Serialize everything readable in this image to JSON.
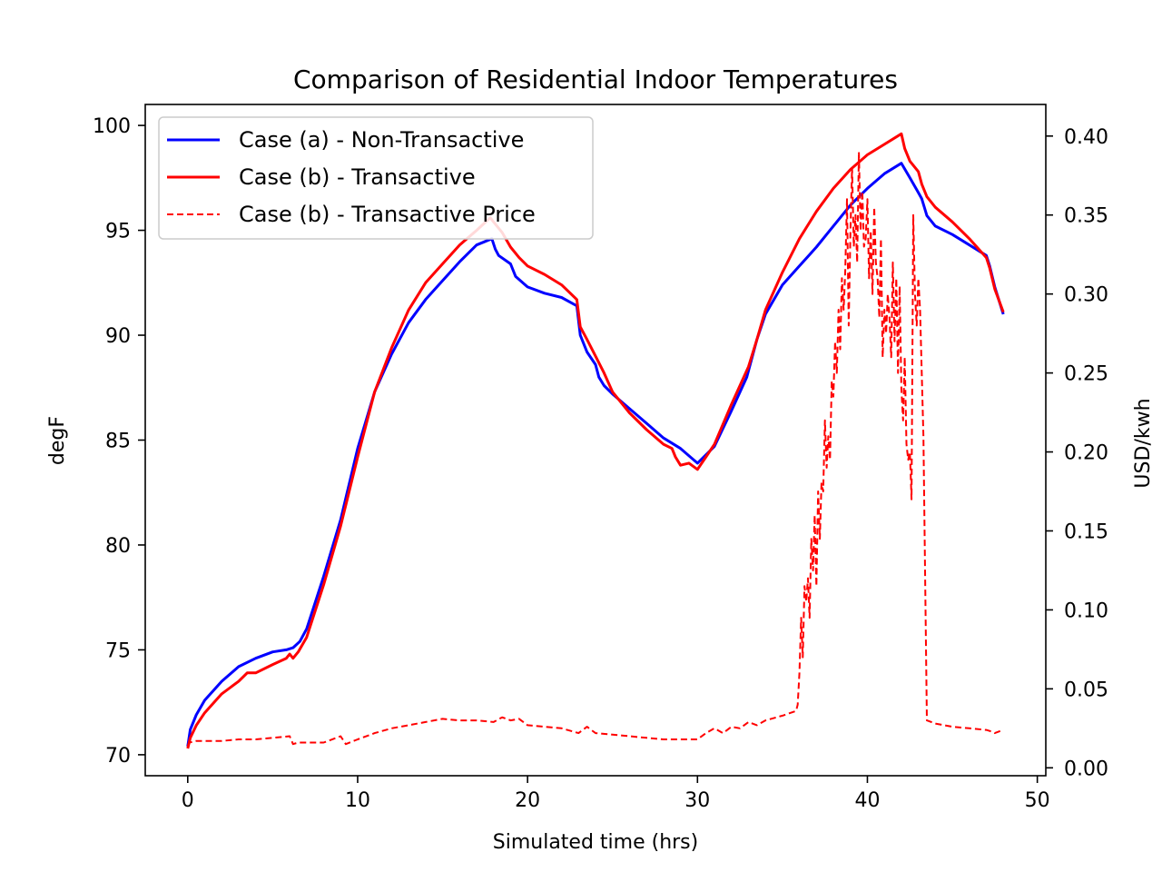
{
  "chart_data": {
    "type": "line",
    "title": "Comparison of Residential Indoor Temperatures",
    "xlabel": "Simulated time (hrs)",
    "ylabel": "degF",
    "y2label": "USD/kwh",
    "xlim": [
      -2.5,
      50.5
    ],
    "ylim": [
      69,
      101
    ],
    "y2lim": [
      -0.005,
      0.42
    ],
    "xticks": [
      "0",
      "10",
      "20",
      "30",
      "40",
      "50"
    ],
    "yticks": [
      "70",
      "75",
      "80",
      "85",
      "90",
      "95",
      "100"
    ],
    "y2ticks": [
      "0.00",
      "0.05",
      "0.10",
      "0.15",
      "0.20",
      "0.25",
      "0.30",
      "0.35",
      "0.40"
    ],
    "legend_position": "upper-left",
    "series": [
      {
        "name": "Case (a) - Non-Transactive",
        "color": "#0000ff",
        "style": "solid",
        "axis": "left",
        "x": [
          0.0,
          0.15,
          0.5,
          1.0,
          2.0,
          3.0,
          4.0,
          5.0,
          5.8,
          6.2,
          6.6,
          7.0,
          8.0,
          9.0,
          10.0,
          11.0,
          12.0,
          13.0,
          14.0,
          15.0,
          16.0,
          17.0,
          17.9,
          18.1,
          18.3,
          19.0,
          19.3,
          20.0,
          21.0,
          22.0,
          22.9,
          23.1,
          23.5,
          24.0,
          24.2,
          24.5,
          25.0,
          26.0,
          27.0,
          28.0,
          29.0,
          30.0,
          31.0,
          32.0,
          32.9,
          33.5,
          34.0,
          35.0,
          36.0,
          37.0,
          38.0,
          39.0,
          40.0,
          41.0,
          42.0,
          42.5,
          43.0,
          43.2,
          43.5,
          44.0,
          45.0,
          46.0,
          47.0,
          47.2,
          47.5,
          48.0
        ],
        "values": [
          70.4,
          71.2,
          71.9,
          72.6,
          73.5,
          74.2,
          74.6,
          74.9,
          75.0,
          75.1,
          75.4,
          76.0,
          78.5,
          81.2,
          84.6,
          87.3,
          89.1,
          90.6,
          91.7,
          92.6,
          93.5,
          94.3,
          94.6,
          94.1,
          93.8,
          93.4,
          92.8,
          92.3,
          92.0,
          91.8,
          91.4,
          90.0,
          89.2,
          88.6,
          88.0,
          87.6,
          87.2,
          86.5,
          85.8,
          85.1,
          84.6,
          83.9,
          84.7,
          86.4,
          88.0,
          89.8,
          91.0,
          92.4,
          93.3,
          94.2,
          95.2,
          96.2,
          97.0,
          97.7,
          98.2,
          97.5,
          96.8,
          96.5,
          95.7,
          95.2,
          94.8,
          94.3,
          93.8,
          93.3,
          92.3,
          91.0
        ]
      },
      {
        "name": "Case (b) - Transactive",
        "color": "#ff0000",
        "style": "solid",
        "axis": "left",
        "x": [
          0.0,
          0.15,
          0.5,
          1.0,
          2.0,
          3.0,
          3.5,
          4.0,
          5.0,
          5.8,
          6.0,
          6.2,
          6.5,
          7.0,
          8.0,
          9.0,
          10.0,
          11.0,
          12.0,
          13.0,
          14.0,
          15.0,
          16.0,
          17.0,
          17.8,
          18.0,
          18.5,
          19.0,
          19.5,
          20.0,
          21.0,
          22.0,
          22.9,
          23.1,
          23.5,
          24.0,
          24.5,
          25.0,
          26.0,
          27.0,
          28.0,
          28.5,
          28.7,
          29.0,
          29.5,
          30.0,
          30.5,
          31.0,
          32.0,
          33.0,
          33.5,
          34.0,
          35.0,
          36.0,
          37.0,
          38.0,
          39.0,
          40.0,
          41.0,
          42.0,
          42.2,
          42.5,
          43.0,
          43.2,
          43.5,
          44.0,
          45.0,
          46.0,
          47.0,
          47.2,
          47.5,
          48.0
        ],
        "values": [
          70.3,
          70.8,
          71.4,
          72.0,
          72.9,
          73.5,
          73.9,
          73.9,
          74.3,
          74.6,
          74.8,
          74.6,
          74.9,
          75.6,
          78.1,
          80.9,
          84.2,
          87.3,
          89.4,
          91.2,
          92.5,
          93.4,
          94.3,
          95.0,
          95.6,
          95.4,
          94.9,
          94.2,
          93.7,
          93.3,
          92.9,
          92.4,
          91.7,
          90.4,
          89.8,
          89.0,
          88.2,
          87.3,
          86.3,
          85.5,
          84.8,
          84.6,
          84.2,
          83.8,
          83.9,
          83.6,
          84.2,
          84.8,
          86.7,
          88.5,
          89.8,
          91.2,
          93.0,
          94.6,
          95.9,
          97.0,
          97.9,
          98.6,
          99.1,
          99.6,
          98.9,
          98.3,
          97.8,
          97.2,
          96.6,
          96.1,
          95.4,
          94.6,
          93.7,
          93.2,
          92.2,
          91.1
        ]
      },
      {
        "name": "Case (b) - Transactive Price",
        "color": "#ff0000",
        "style": "dashed",
        "axis": "right",
        "x": [
          0.0,
          0.1,
          0.5,
          1.0,
          2.0,
          3.0,
          4.0,
          5.0,
          6.0,
          6.2,
          6.5,
          7.0,
          8.0,
          9.0,
          9.3,
          10.0,
          11.0,
          12.0,
          13.0,
          14.0,
          15.0,
          16.0,
          17.0,
          18.0,
          18.5,
          19.0,
          19.5,
          20.0,
          21.0,
          22.0,
          23.0,
          23.5,
          24.0,
          25.0,
          26.0,
          27.0,
          28.0,
          29.0,
          30.0,
          30.5,
          31.0,
          31.5,
          32.0,
          32.5,
          33.0,
          33.5,
          34.0,
          35.0,
          35.8,
          35.9,
          36.0,
          36.1,
          36.2,
          36.3,
          36.4,
          36.5,
          36.6,
          36.7,
          36.8,
          36.9,
          37.0,
          37.1,
          37.2,
          37.3,
          37.4,
          37.5,
          37.6,
          37.7,
          37.8,
          37.9,
          38.0,
          38.1,
          38.2,
          38.3,
          38.4,
          38.5,
          38.6,
          38.7,
          38.8,
          38.9,
          39.0,
          39.1,
          39.2,
          39.3,
          39.4,
          39.5,
          39.6,
          39.7,
          39.8,
          39.9,
          40.0,
          40.1,
          40.2,
          40.3,
          40.4,
          40.5,
          40.6,
          40.7,
          40.8,
          40.9,
          41.0,
          41.1,
          41.2,
          41.3,
          41.4,
          41.5,
          41.6,
          41.7,
          41.8,
          41.9,
          42.0,
          42.1,
          42.2,
          42.3,
          42.4,
          42.5,
          42.6,
          42.7,
          42.8,
          42.9,
          43.0,
          43.1,
          43.3,
          43.5,
          44.0,
          45.0,
          46.0,
          47.0,
          47.3,
          47.5,
          48.0
        ],
        "values": [
          0.014,
          0.016,
          0.017,
          0.017,
          0.017,
          0.018,
          0.018,
          0.019,
          0.02,
          0.015,
          0.016,
          0.016,
          0.016,
          0.02,
          0.015,
          0.018,
          0.022,
          0.025,
          0.027,
          0.029,
          0.031,
          0.03,
          0.03,
          0.029,
          0.032,
          0.03,
          0.031,
          0.027,
          0.026,
          0.025,
          0.022,
          0.026,
          0.022,
          0.021,
          0.02,
          0.019,
          0.018,
          0.018,
          0.018,
          0.022,
          0.025,
          0.022,
          0.026,
          0.025,
          0.029,
          0.027,
          0.03,
          0.033,
          0.036,
          0.04,
          0.06,
          0.095,
          0.07,
          0.115,
          0.105,
          0.12,
          0.095,
          0.145,
          0.125,
          0.16,
          0.115,
          0.175,
          0.145,
          0.18,
          0.175,
          0.22,
          0.19,
          0.21,
          0.195,
          0.245,
          0.235,
          0.27,
          0.25,
          0.29,
          0.265,
          0.31,
          0.29,
          0.315,
          0.36,
          0.28,
          0.34,
          0.38,
          0.33,
          0.35,
          0.32,
          0.39,
          0.34,
          0.365,
          0.33,
          0.335,
          0.36,
          0.31,
          0.34,
          0.3,
          0.355,
          0.32,
          0.31,
          0.285,
          0.335,
          0.26,
          0.29,
          0.275,
          0.3,
          0.285,
          0.26,
          0.32,
          0.27,
          0.31,
          0.25,
          0.305,
          0.24,
          0.22,
          0.26,
          0.205,
          0.195,
          0.2,
          0.17,
          0.35,
          0.3,
          0.28,
          0.31,
          0.29,
          0.21,
          0.03,
          0.028,
          0.026,
          0.025,
          0.024,
          0.023,
          0.022,
          0.024
        ]
      }
    ]
  }
}
